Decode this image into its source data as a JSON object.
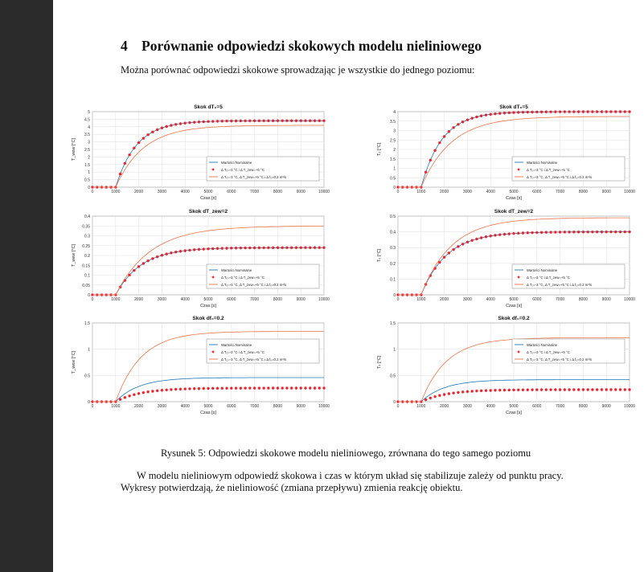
{
  "section": {
    "number": "4",
    "title": "Porównanie odpowiedzi skokowych modelu nieliniowego"
  },
  "intro_text": "Można porównać odpowiedzi skokowe sprowadzając je wszystkie do jednego poziomu:",
  "caption": "Rysunek 5: Odpowiedzi skokowe modelu nieliniowego, zrównana do tego samego poziomu",
  "paragraph_line1": "W modelu nieliniowym odpowiedź skokowa i czas w którym układ się stabilizuje zależy od punktu pracy.",
  "paragraph_line2": "Wykresy potwierdzają, że nieliniowość (zmiana przepływu) zmienia reakcję obiektu.",
  "chart_data": [
    {
      "type": "line",
      "title": "Skok dT₀=5",
      "xlabel": "Czas [s]",
      "ylabel": "T_wew [°C]",
      "xlim": [
        0,
        10000
      ],
      "ylim": [
        0,
        5
      ],
      "xticks": [
        0,
        1000,
        2000,
        3000,
        4000,
        5000,
        6000,
        7000,
        8000,
        9000,
        10000
      ],
      "yticks": [
        0,
        0.5,
        1,
        1.5,
        2,
        2.5,
        3,
        3.5,
        4,
        4.5,
        5
      ],
      "legend": [
        "Wartości Nominalne",
        "Δ T₀=-3 °C i Δ T_zew=+5 °C",
        "Δ T₀=-3 °C, Δ T_zew=+5 °C i Δ f₀=0.2 m³/s"
      ],
      "legend_position": "bottom-right",
      "step_time": 1000,
      "series": [
        {
          "name": "Wartości Nominalne",
          "color": "#1f77b4",
          "final": 4.4,
          "tau": 900,
          "marker": "none"
        },
        {
          "name": "Δ T₀=-3 °C i Δ T_zew=+5 °C",
          "color": "#e8202a",
          "final": 4.4,
          "tau": 900,
          "marker": "star"
        },
        {
          "name": "Δ T₀=-3 °C, Δ T_zew=+5 °C i Δ f₀=0.2 m³/s",
          "color": "#e8744a",
          "final": 4.1,
          "tau": 1200,
          "marker": "none"
        }
      ]
    },
    {
      "type": "line",
      "title": "Skok dT₀=5",
      "xlabel": "Czas [s]",
      "ylabel": "T₀ [°C]",
      "xlim": [
        0,
        10000
      ],
      "ylim": [
        0,
        4
      ],
      "xticks": [
        0,
        1000,
        2000,
        3000,
        4000,
        5000,
        6000,
        7000,
        8000,
        9000,
        10000
      ],
      "yticks": [
        0,
        0.5,
        1,
        1.5,
        2,
        2.5,
        3,
        3.5,
        4
      ],
      "legend": [
        "Wartości Nominalne",
        "Δ T₀=-3 °C i Δ T_zew=+5 °C",
        "Δ T₀=-3 °C, Δ T_zew=+5 °C i Δ f₀=0.2 m³/s"
      ],
      "legend_position": "bottom-right",
      "step_time": 1000,
      "series": [
        {
          "name": "Wartości Nominalne",
          "color": "#1f77b4",
          "final": 4.0,
          "tau": 900,
          "marker": "none"
        },
        {
          "name": "Δ T₀=-3 °C i Δ T_zew=+5 °C",
          "color": "#e8202a",
          "final": 4.0,
          "tau": 900,
          "marker": "star"
        },
        {
          "name": "Δ T₀=-3 °C, Δ T_zew=+5 °C i Δ f₀=0.2 m³/s",
          "color": "#e8744a",
          "final": 3.75,
          "tau": 1300,
          "marker": "none"
        }
      ]
    },
    {
      "type": "line",
      "title": "Skok dT_zew=2",
      "xlabel": "Czas [s]",
      "ylabel": "T_wew [°C]",
      "xlim": [
        0,
        10000
      ],
      "ylim": [
        0,
        0.4
      ],
      "xticks": [
        0,
        1000,
        2000,
        3000,
        4000,
        5000,
        6000,
        7000,
        8000,
        9000,
        10000
      ],
      "yticks": [
        0,
        0.05,
        0.1,
        0.15,
        0.2,
        0.25,
        0.3,
        0.35,
        0.4
      ],
      "legend": [
        "Wartości Nominalne",
        "Δ T₀=-3 °C i Δ T_zew=+5 °C",
        "Δ T₀=-3 °C, Δ T_zew=+5 °C i Δ f₀=0.2 m³/s"
      ],
      "legend_position": "bottom-right",
      "step_time": 1000,
      "series": [
        {
          "name": "Wartości Nominalne",
          "color": "#1f77b4",
          "final": 0.24,
          "tau": 1100,
          "marker": "none"
        },
        {
          "name": "Δ T₀=-3 °C i Δ T_zew=+5 °C",
          "color": "#e8202a",
          "final": 0.24,
          "tau": 1100,
          "marker": "star"
        },
        {
          "name": "Δ T₀=-3 °C, Δ T_zew=+5 °C i Δ f₀=0.2 m³/s",
          "color": "#e8744a",
          "final": 0.35,
          "tau": 1500,
          "marker": "none"
        }
      ]
    },
    {
      "type": "line",
      "title": "Skok dT_zew=2",
      "xlabel": "Czas [s]",
      "ylabel": "T₀ [°C]",
      "xlim": [
        0,
        10000
      ],
      "ylim": [
        0,
        0.5
      ],
      "xticks": [
        0,
        1000,
        2000,
        3000,
        4000,
        5000,
        6000,
        7000,
        8000,
        9000,
        10000
      ],
      "yticks": [
        0,
        0.1,
        0.2,
        0.3,
        0.4,
        0.5
      ],
      "legend": [
        "Wartości Nominalne",
        "Δ T₀=-3 °C i Δ T_zew=+5 °C",
        "Δ T₀=-3 °C, Δ T_zew=+5 °C i Δ f₀=0.2 m³/s"
      ],
      "legend_position": "bottom-right",
      "step_time": 1000,
      "series": [
        {
          "name": "Wartości Nominalne",
          "color": "#1f77b4",
          "final": 0.4,
          "tau": 1100,
          "marker": "none"
        },
        {
          "name": "Δ T₀=-3 °C i Δ T_zew=+5 °C",
          "color": "#e8202a",
          "final": 0.4,
          "tau": 1100,
          "marker": "star"
        },
        {
          "name": "Δ T₀=-3 °C, Δ T_zew=+5 °C i Δ f₀=0.2 m³/s",
          "color": "#e8744a",
          "final": 0.49,
          "tau": 1300,
          "marker": "none"
        }
      ]
    },
    {
      "type": "line",
      "title": "Skok df₀=0.2",
      "xlabel": "Czas [s]",
      "ylabel": "T_wew [°C]",
      "xlim": [
        0,
        10000
      ],
      "ylim": [
        0,
        1.5
      ],
      "xticks": [
        0,
        1000,
        2000,
        3000,
        4000,
        5000,
        6000,
        7000,
        8000,
        9000,
        10000
      ],
      "yticks": [
        0,
        0.5,
        1,
        1.5
      ],
      "legend": [
        "Wartości Nominalne",
        "Δ T₀=-3 °C i Δ T_zew=+5 °C",
        "Δ T₀=-3 °C, Δ T_zew=+5 °C i Δ f₀=0.2 m³/s"
      ],
      "legend_position": "top-right",
      "step_time": 1000,
      "series": [
        {
          "name": "Wartości Nominalne",
          "color": "#1f77b4",
          "final": 0.46,
          "tau": 1000,
          "marker": "none"
        },
        {
          "name": "Δ T₀=-3 °C i Δ T_zew=+5 °C",
          "color": "#e8202a",
          "final": 0.26,
          "tau": 1100,
          "marker": "star"
        },
        {
          "name": "Δ T₀=-3 °C, Δ T_zew=+5 °C i Δ f₀=0.2 m³/s",
          "color": "#e8744a",
          "final": 1.34,
          "tau": 1100,
          "marker": "none"
        }
      ]
    },
    {
      "type": "line",
      "title": "Skok df₀=0.2",
      "xlabel": "Czas [s]",
      "ylabel": "T₀ [°C]",
      "xlim": [
        0,
        10000
      ],
      "ylim": [
        0,
        1.5
      ],
      "xticks": [
        0,
        1000,
        2000,
        3000,
        4000,
        5000,
        6000,
        7000,
        8000,
        9000,
        10000
      ],
      "yticks": [
        0,
        0.5,
        1,
        1.5
      ],
      "legend": [
        "Wartości Nominalne",
        "Δ T₀=-3 °C i Δ T_zew=+5 °C",
        "Δ T₀=-3 °C, Δ T_zew=+5 °C i Δ f₀=0.2 m³/s"
      ],
      "legend_position": "top-right",
      "step_time": 1000,
      "series": [
        {
          "name": "Wartości Nominalne",
          "color": "#1f77b4",
          "final": 0.42,
          "tau": 1000,
          "marker": "none"
        },
        {
          "name": "Δ T₀=-3 °C i Δ T_zew=+5 °C",
          "color": "#e8202a",
          "final": 0.23,
          "tau": 1100,
          "marker": "star"
        },
        {
          "name": "Δ T₀=-3 °C, Δ T_zew=+5 °C i Δ f₀=0.2 m³/s",
          "color": "#e8744a",
          "final": 1.22,
          "tau": 1100,
          "marker": "none"
        }
      ]
    }
  ]
}
